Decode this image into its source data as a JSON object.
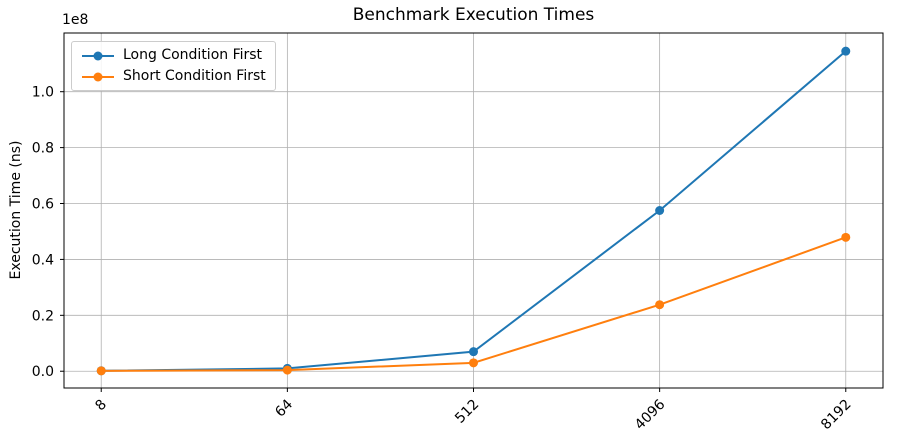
{
  "chart_data": {
    "type": "line",
    "title": "Benchmark Execution Times",
    "xlabel": "",
    "ylabel": "Execution Time (ns)",
    "y_offset_label": "1e8",
    "categories": [
      "8",
      "64",
      "512",
      "4096",
      "8192"
    ],
    "series": [
      {
        "name": "Long Condition First",
        "color": "#1f77b4",
        "marker": "o",
        "values": [
          150000,
          1000000,
          7000000,
          57500000,
          114500000
        ]
      },
      {
        "name": "Short Condition First",
        "color": "#ff7f0e",
        "marker": "o",
        "values": [
          140000,
          400000,
          3000000,
          23800000,
          47900000
        ]
      }
    ],
    "ylim": [
      -6000000,
      121000000
    ],
    "yticks": {
      "values": [
        0,
        20000000,
        40000000,
        60000000,
        80000000,
        100000000
      ],
      "labels": [
        "0.0",
        "0.2",
        "0.4",
        "0.6",
        "0.8",
        "1.0"
      ]
    },
    "xtick_rotation_deg": 45,
    "grid": true,
    "grid_color": "#b0b0b0",
    "spine_color": "#000000",
    "background": "#ffffff",
    "legend_position": "upper left"
  }
}
